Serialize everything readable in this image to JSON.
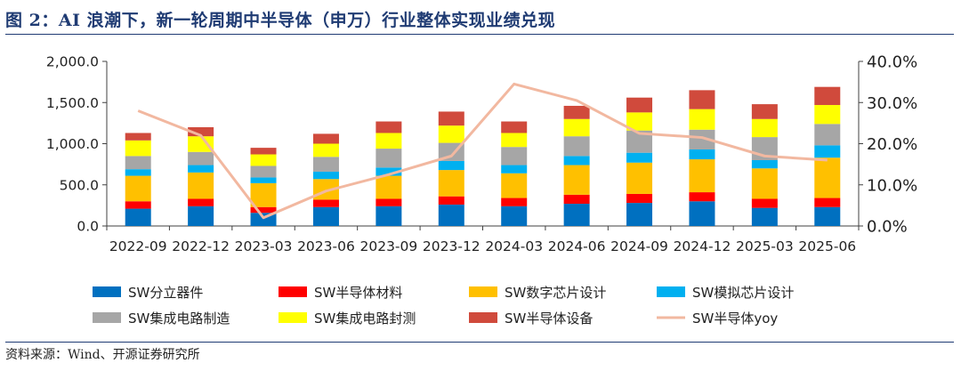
{
  "title": "图 2：AI 浪潮下，新一轮周期中半导体（申万）行业整体实现业绩兑现",
  "source": "资料来源：Wind、开源证券研究所",
  "chart_data": {
    "type": "bar",
    "stacked": true,
    "categories": [
      "2022-09",
      "2022-12",
      "2023-03",
      "2023-06",
      "2023-09",
      "2023-12",
      "2024-03",
      "2024-06",
      "2024-09",
      "2024-12",
      "2025-03",
      "2025-06"
    ],
    "ylim": [
      0,
      2000
    ],
    "yticks": [
      "0.0",
      "500.0",
      "1,000.0",
      "1,500.0",
      "2,000.0"
    ],
    "y2lim": [
      0,
      40
    ],
    "y2ticks": [
      "0.0%",
      "10.0%",
      "20.0%",
      "30.0%",
      "40.0%"
    ],
    "series": [
      {
        "name": "SW分立器件",
        "color": "#0070c0",
        "values": [
          210,
          240,
          160,
          230,
          240,
          260,
          240,
          270,
          280,
          300,
          220,
          230
        ]
      },
      {
        "name": "SW半导体材料",
        "color": "#ff0000",
        "values": [
          90,
          90,
          70,
          90,
          90,
          100,
          100,
          110,
          110,
          110,
          110,
          110
        ]
      },
      {
        "name": "SW数字芯片设计",
        "color": "#ffc000",
        "values": [
          310,
          320,
          290,
          250,
          280,
          320,
          300,
          360,
          380,
          400,
          370,
          490
        ]
      },
      {
        "name": "SW模拟芯片设计",
        "color": "#00b0f0",
        "values": [
          80,
          90,
          70,
          90,
          100,
          110,
          100,
          110,
          120,
          120,
          100,
          150
        ]
      },
      {
        "name": "SW集成电路制造",
        "color": "#a6a6a6",
        "values": [
          160,
          160,
          140,
          180,
          230,
          220,
          220,
          240,
          270,
          240,
          280,
          260
        ]
      },
      {
        "name": "SW集成电路封测",
        "color": "#ffff00",
        "values": [
          190,
          190,
          140,
          160,
          190,
          210,
          170,
          210,
          220,
          250,
          220,
          230
        ]
      },
      {
        "name": "SW半导体设备",
        "color": "#d04a3c",
        "values": [
          90,
          110,
          80,
          120,
          140,
          170,
          140,
          160,
          180,
          230,
          180,
          220
        ]
      }
    ],
    "line": {
      "name": "SW半导体yoy",
      "color": "#f2b8a0",
      "axis": "right",
      "values": [
        28.0,
        22.0,
        2.0,
        8.5,
        12.5,
        17.0,
        34.5,
        30.5,
        22.5,
        21.5,
        17.0,
        16.0
      ]
    }
  }
}
